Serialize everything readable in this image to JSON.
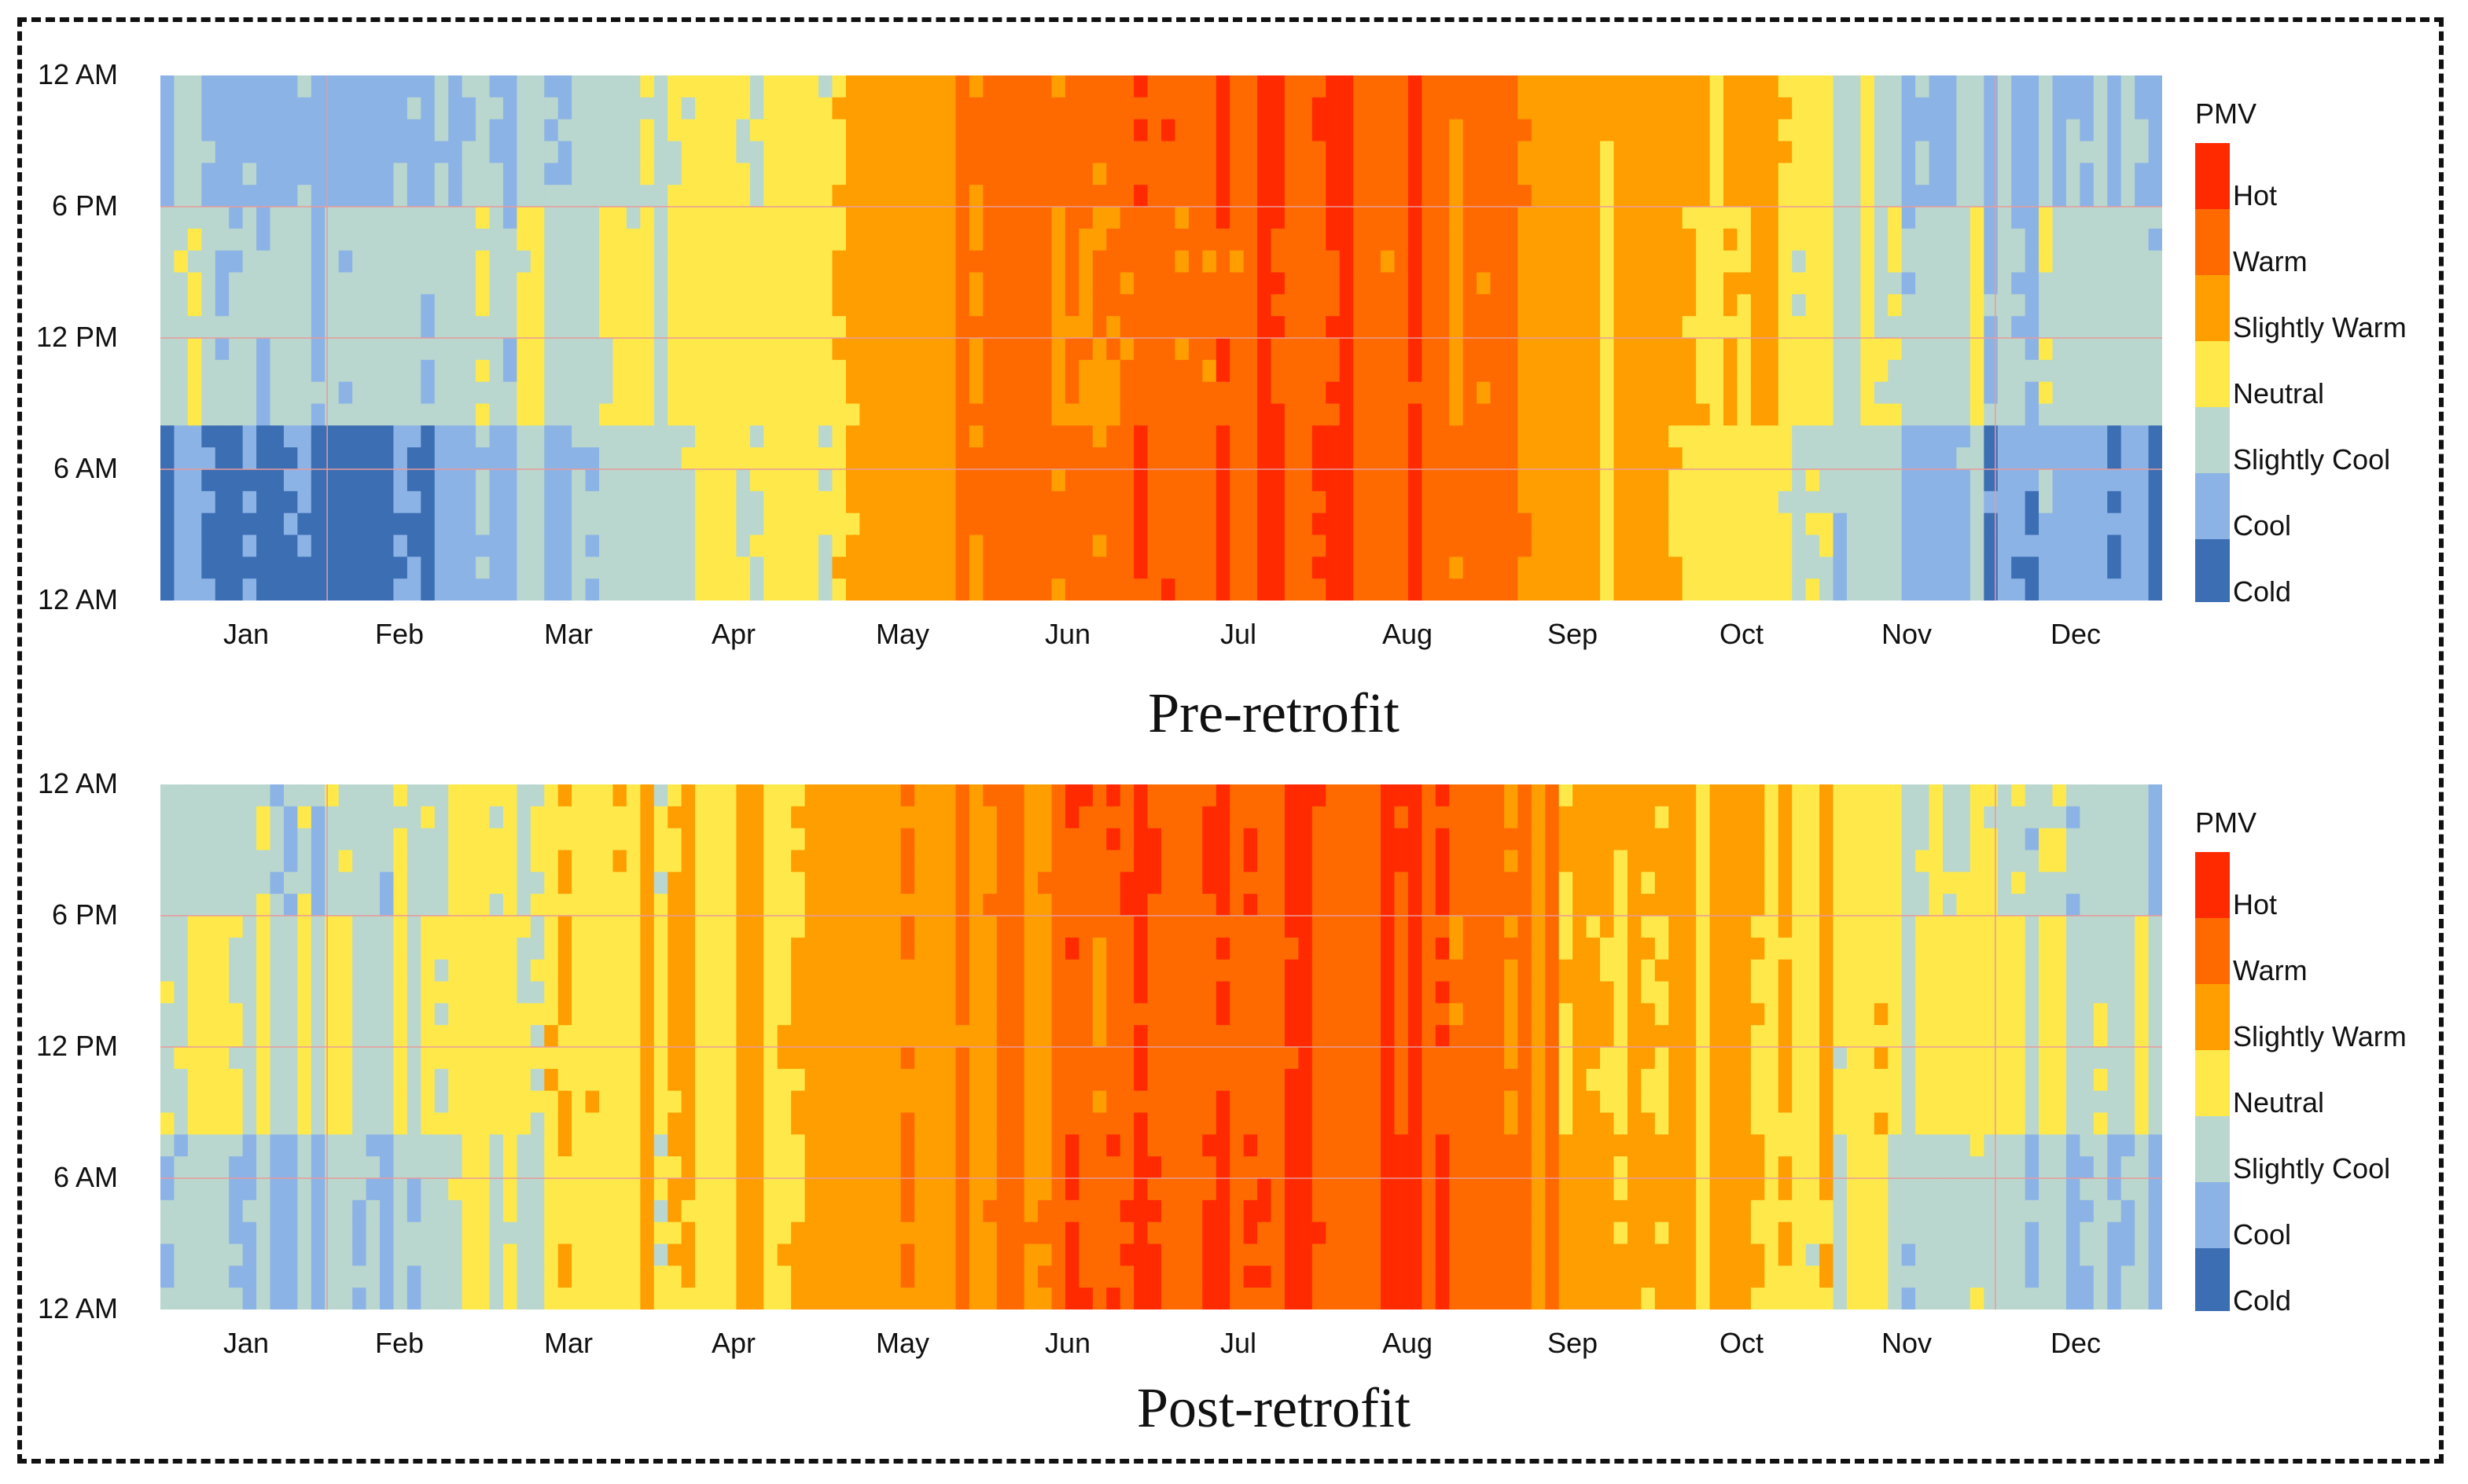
{
  "legend": {
    "title": "PMV",
    "categories": [
      "Hot",
      "Warm",
      "Slightly Warm",
      "Neutral",
      "Slightly Cool",
      "Cool",
      "Cold"
    ],
    "colors": [
      "#ff2a00",
      "#ff6a00",
      "#ff9e00",
      "#ffe94a",
      "#b9d7cf",
      "#8cb3e6",
      "#3c6eb4"
    ]
  },
  "chart_data": [
    {
      "type": "heatmap",
      "title": "Pre-retrofit",
      "x_axis": {
        "label": "",
        "ticks": [
          "Jan",
          "Feb",
          "Mar",
          "Apr",
          "May",
          "Jun",
          "Jul",
          "Aug",
          "Sep",
          "Oct",
          "Nov",
          "Dec"
        ],
        "range_days": [
          1,
          365
        ]
      },
      "y_axis": {
        "label": "",
        "ticks": [
          "12 AM",
          "6 PM",
          "12 PM",
          "6 AM",
          "12 AM"
        ],
        "range_hours": [
          0,
          24
        ]
      },
      "color_scale": "PMV (Cold, Cool, Slightly Cool, Neutral, Slightly Warm, Warm, Hot)",
      "monthly_pmv": {
        "night": [
          -2.6,
          -2.5,
          -1.2,
          -0.6,
          1.0,
          2.0,
          2.6,
          2.5,
          0.8,
          -0.2,
          -1.6,
          -2.2
        ],
        "day": [
          -1.0,
          -1.0,
          -0.6,
          -0.3,
          0.9,
          1.8,
          2.3,
          2.2,
          0.7,
          0.3,
          -0.9,
          -1.0
        ],
        "evening": [
          -1.7,
          -1.6,
          -0.9,
          -0.5,
          1.0,
          2.0,
          2.5,
          2.4,
          0.8,
          0.8,
          -1.2,
          -1.6
        ]
      }
    },
    {
      "type": "heatmap",
      "title": "Post-retrofit",
      "x_axis": {
        "label": "",
        "ticks": [
          "Jan",
          "Feb",
          "Mar",
          "Apr",
          "May",
          "Jun",
          "Jul",
          "Aug",
          "Sep",
          "Oct",
          "Nov",
          "Dec"
        ],
        "range_days": [
          1,
          365
        ]
      },
      "y_axis": {
        "label": "",
        "ticks": [
          "12 AM",
          "6 PM",
          "12 PM",
          "6 AM",
          "12 AM"
        ],
        "range_hours": [
          0,
          24
        ]
      },
      "color_scale": "PMV (Cold, Cool, Slightly Cool, Neutral, Slightly Warm, Warm, Hot)",
      "monthly_pmv": {
        "night": [
          -1.4,
          -1.3,
          0.1,
          0.3,
          1.1,
          2.0,
          2.6,
          2.5,
          1.2,
          0.6,
          -0.9,
          -1.2
        ],
        "day": [
          -0.5,
          -0.5,
          0.2,
          0.4,
          0.9,
          1.8,
          2.3,
          2.2,
          0.9,
          0.5,
          -0.3,
          -0.5
        ],
        "evening": [
          -1.0,
          -0.9,
          0.2,
          0.3,
          1.0,
          2.0,
          2.5,
          2.4,
          1.0,
          0.9,
          -0.6,
          -1.0
        ]
      }
    }
  ]
}
